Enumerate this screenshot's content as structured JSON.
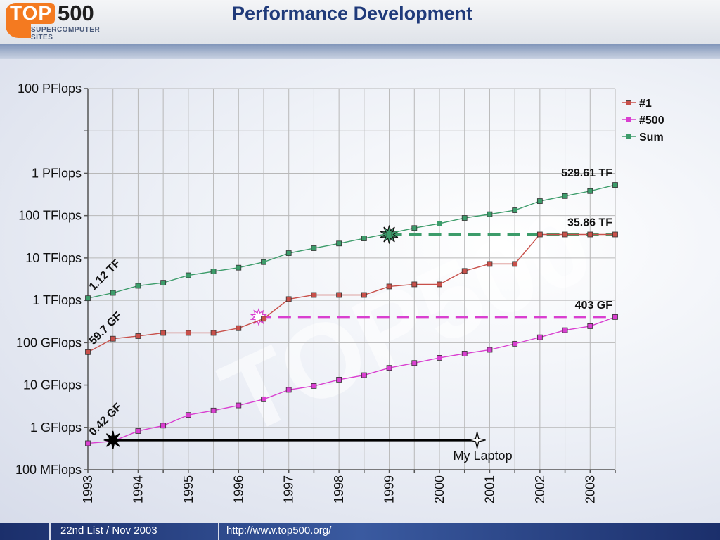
{
  "header": {
    "logo_top": "TOP",
    "logo_500": "500",
    "logo_sub": "SUPERCOMPUTER SITES",
    "title": "Performance Development"
  },
  "footer": {
    "list": "22nd List / Nov 2003",
    "url": "http://www.top500.org/"
  },
  "colors": {
    "num1": "#c8504a",
    "num500": "#d93fd0",
    "sum": "#3c9c6a",
    "title": "#1f3a7a",
    "footer": "#1b2f6b"
  },
  "chart_data": {
    "type": "line",
    "y_scale": "log",
    "ylim_flops": [
      100000000.0,
      1e+17
    ],
    "y_tick_labels": [
      "100 PFlops",
      "1 PFlops",
      "100 TFlops",
      "10 TFlops",
      "1 TFlops",
      "100 GFlops",
      "10 GFlops",
      "1 GFlops",
      "100 MFlops"
    ],
    "y_tick_values_flops": [
      1e+17,
      1000000000000000.0,
      100000000000000.0,
      10000000000000.0,
      1000000000000.0,
      100000000000.0,
      10000000000.0,
      1000000000.0,
      100000000.0
    ],
    "x_tick_labels": [
      "1993",
      "1994",
      "1995",
      "1996",
      "1997",
      "1998",
      "1999",
      "2000",
      "2001",
      "2002",
      "2003"
    ],
    "xlim_year": [
      1993,
      2003.5
    ],
    "grid": true,
    "legend_placement": "top-right",
    "series": [
      {
        "name": "#1",
        "color": "#c8504a",
        "x": [
          1993.0,
          1993.5,
          1994.0,
          1994.5,
          1995.0,
          1995.5,
          1996.0,
          1996.5,
          1997.0,
          1997.5,
          1998.0,
          1998.5,
          1999.0,
          1999.5,
          2000.0,
          2000.5,
          2001.0,
          2001.5,
          2002.0,
          2002.5,
          2003.0,
          2003.5
        ],
        "values_gflops": [
          59.7,
          124,
          143,
          170,
          170,
          170,
          220,
          368,
          1068,
          1338,
          1338,
          1338,
          2121,
          2379,
          2379,
          4938,
          7226,
          7226,
          35860,
          35860,
          35860,
          35860
        ]
      },
      {
        "name": "#500",
        "color": "#d93fd0",
        "x": [
          1993.0,
          1993.5,
          1994.0,
          1994.5,
          1995.0,
          1995.5,
          1996.0,
          1996.5,
          1997.0,
          1997.5,
          1998.0,
          1998.5,
          1999.0,
          1999.5,
          2000.0,
          2000.5,
          2001.0,
          2001.5,
          2002.0,
          2002.5,
          2003.0,
          2003.5
        ],
        "values_gflops": [
          0.42,
          0.47,
          0.82,
          1.1,
          1.96,
          2.5,
          3.3,
          4.6,
          7.7,
          9.5,
          13.4,
          17.1,
          25.4,
          33.1,
          43.8,
          55.1,
          67.8,
          94.3,
          134,
          197,
          245,
          403
        ]
      },
      {
        "name": "Sum",
        "color": "#3c9c6a",
        "x": [
          1993.0,
          1993.5,
          1994.0,
          1994.5,
          1995.0,
          1995.5,
          1996.0,
          1996.5,
          1997.0,
          1997.5,
          1998.0,
          1998.5,
          1999.0,
          1999.5,
          2000.0,
          2000.5,
          2001.0,
          2001.5,
          2002.0,
          2002.5,
          2003.0,
          2003.5
        ],
        "values_gflops": [
          1120,
          1500,
          2200,
          2600,
          3900,
          4800,
          5900,
          8000,
          13000,
          17000,
          22000,
          29000,
          38000,
          51000,
          65000,
          88000,
          108000,
          134000,
          220000,
          290000,
          380000,
          529610
        ]
      }
    ],
    "annotations": [
      {
        "text": "1.12 TF",
        "x": 1993.0,
        "value_gflops": 1120,
        "rotated": true
      },
      {
        "text": "59.7 GF",
        "x": 1993.0,
        "value_gflops": 59.7,
        "rotated": true
      },
      {
        "text": "0.42 GF",
        "x": 1993.0,
        "value_gflops": 0.42,
        "rotated": true
      },
      {
        "text": "529.61 TF",
        "x": 2003.5,
        "value_gflops": 529610
      },
      {
        "text": "35.86 TF",
        "x": 2003.5,
        "value_gflops": 35860
      },
      {
        "text": "403 GF",
        "x": 2003.5,
        "value_gflops": 403
      }
    ],
    "reference_lines": [
      {
        "name": "sum-level-35tf",
        "color": "#3c9c6a",
        "value_gflops": 35860,
        "x_start": 1999.0,
        "x_end": 2003.5
      },
      {
        "name": "num1-level-403gf",
        "color": "#d93fd0",
        "value_gflops": 403,
        "x_start": 1996.4,
        "x_end": 2003.5
      }
    ],
    "laptop": {
      "label": "My Laptop",
      "value_gflops": 0.5,
      "x_start": 1993.5,
      "x_end": 2000.75
    }
  }
}
